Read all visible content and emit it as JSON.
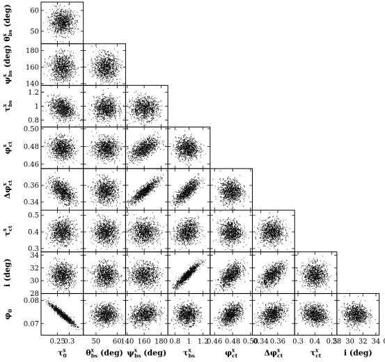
{
  "chart_data": {
    "type": "scatter",
    "layout": "corner-plot",
    "parameters": [
      {
        "id": "tau_0",
        "label": {
          "base": "τ",
          "sub": "0",
          "sup": "x",
          "unit": ""
        },
        "range": [
          0.18,
          0.36
        ],
        "mean": 0.27,
        "sd": 0.025,
        "ticks": [
          0.25,
          0.3
        ],
        "tick_labels": [
          "0.25",
          "0.3"
        ]
      },
      {
        "id": "theta_bs",
        "label": {
          "base": "θ",
          "sub": "bs",
          "sup": "x",
          "unit": " (deg)"
        },
        "range": [
          44,
          64
        ],
        "mean": 54.5,
        "sd": 2.8,
        "ticks": [
          50,
          60
        ],
        "tick_labels": [
          "50",
          "60"
        ]
      },
      {
        "id": "psi_bs",
        "label": {
          "base": "ψ",
          "sub": "bs",
          "sup": "x",
          "unit": " (deg)"
        },
        "range": [
          138,
          188
        ],
        "mean": 160,
        "sd": 8,
        "ticks": [
          140,
          160,
          180
        ],
        "tick_labels": [
          "140",
          "160",
          "180"
        ]
      },
      {
        "id": "tau_bs",
        "label": {
          "base": "τ",
          "sub": "bs",
          "sup": "x",
          "unit": ""
        },
        "range": [
          0.7,
          1.3
        ],
        "mean": 0.97,
        "sd": 0.08,
        "ticks": [
          0.8,
          1.0,
          1.2
        ],
        "tick_labels": [
          "0.8",
          "1",
          "1.2"
        ]
      },
      {
        "id": "phi_ct",
        "label": {
          "base": "φ",
          "sub": "ct",
          "sup": "x",
          "unit": ""
        },
        "range": [
          0.455,
          0.502
        ],
        "mean": 0.478,
        "sd": 0.006,
        "ticks": [
          0.46,
          0.48,
          0.5
        ],
        "tick_labels": [
          "0.46",
          "0.48",
          "0.50"
        ]
      },
      {
        "id": "dphi_ct",
        "label": {
          "base": "Δφ",
          "sub": "ct",
          "sup": "x",
          "unit": ""
        },
        "range": [
          0.33,
          0.38
        ],
        "mean": 0.353,
        "sd": 0.007,
        "ticks": [
          0.34,
          0.36
        ],
        "tick_labels": [
          "0.34",
          "0.36"
        ]
      },
      {
        "id": "tau_ct",
        "label": {
          "base": "τ",
          "sub": "ct",
          "sup": "x",
          "unit": ""
        },
        "range": [
          0.28,
          0.53
        ],
        "mean": 0.4,
        "sd": 0.035,
        "ticks": [
          0.3,
          0.4,
          0.5
        ],
        "tick_labels": [
          "0.3",
          "0.4",
          "0.5"
        ]
      },
      {
        "id": "i",
        "label": {
          "base": "i",
          "sub": "",
          "sup": "",
          "unit": " (deg)"
        },
        "range": [
          28,
          34.5
        ],
        "mean": 30.9,
        "sd": 0.9,
        "ticks": [
          28,
          30,
          32,
          34
        ],
        "tick_labels": [
          "28",
          "30",
          "32",
          "34"
        ]
      },
      {
        "id": "phi_0",
        "label": {
          "base": "φ",
          "sub": "0",
          "sup": "",
          "unit": ""
        },
        "range": [
          0.065,
          0.083
        ],
        "mean": 0.074,
        "sd": 0.0022,
        "ticks": [
          0.07,
          0.08
        ],
        "tick_labels": [
          "0.07",
          "0.08"
        ]
      }
    ],
    "correlations": [
      {
        "row": 2,
        "col": 0,
        "r": -0.3
      },
      {
        "row": 3,
        "col": 0,
        "r": -0.1
      },
      {
        "row": 3,
        "col": 2,
        "r": 0.55
      },
      {
        "row": 4,
        "col": 0,
        "r": -0.55
      },
      {
        "row": 4,
        "col": 2,
        "r": 0.88
      },
      {
        "row": 4,
        "col": 3,
        "r": 0.75
      },
      {
        "row": 5,
        "col": 3,
        "r": 0.2
      },
      {
        "row": 6,
        "col": 3,
        "r": 0.92
      },
      {
        "row": 6,
        "col": 4,
        "r": 0.55
      },
      {
        "row": 6,
        "col": 5,
        "r": 0.6
      },
      {
        "row": 7,
        "col": 0,
        "r": -0.95
      },
      {
        "row": 7,
        "col": 2,
        "r": 0.25
      },
      {
        "row": 7,
        "col": 4,
        "r": 0.45
      },
      {
        "row": 7,
        "col": 5,
        "r": 0.35
      },
      {
        "row": 7,
        "col": 6,
        "r": -0.2
      },
      {
        "row": 8,
        "col": 3,
        "r": 0.85
      },
      {
        "row": 8,
        "col": 4,
        "r": 0.4
      },
      {
        "row": 8,
        "col": 5,
        "r": 0.45
      },
      {
        "row": 8,
        "col": 6,
        "r": 0.88
      }
    ],
    "points_per_panel": 1000,
    "grid": false,
    "legend": "none",
    "title": ""
  }
}
